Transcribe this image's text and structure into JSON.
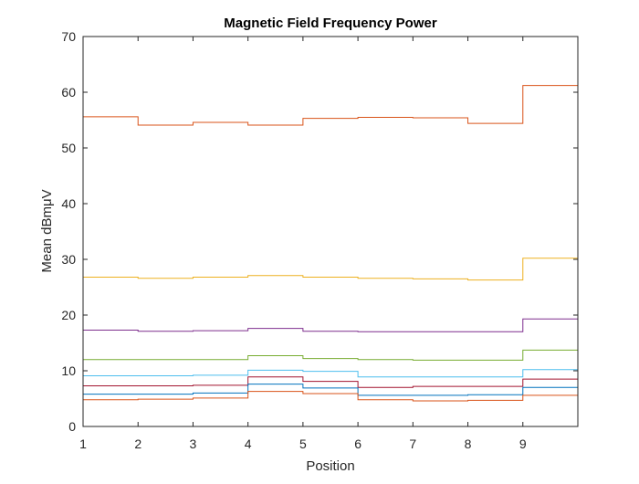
{
  "chart_data": {
    "type": "line",
    "title": "Magnetic Field Frequency Power",
    "xlabel": "Position",
    "ylabel": "Mean dBmμV",
    "xlim": [
      1,
      10
    ],
    "ylim": [
      0,
      70
    ],
    "xticks": [
      1,
      2,
      3,
      4,
      5,
      6,
      7,
      8,
      9
    ],
    "yticks": [
      0,
      10,
      20,
      30,
      40,
      50,
      60,
      70
    ],
    "grid": false,
    "legend": "none",
    "step": true,
    "x_edges": [
      1,
      2,
      3,
      4,
      5,
      6,
      7,
      8,
      9,
      10
    ],
    "series": [
      {
        "color": "#D95319",
        "values": [
          55.6,
          54.1,
          54.6,
          54.1,
          55.3,
          55.5,
          55.4,
          54.4,
          61.2
        ]
      },
      {
        "color": "#EDB120",
        "values": [
          26.8,
          26.6,
          26.8,
          27.1,
          26.8,
          26.6,
          26.5,
          26.3,
          30.2
        ]
      },
      {
        "color": "#7E2F8E",
        "values": [
          17.3,
          17.1,
          17.2,
          17.6,
          17.1,
          17.0,
          17.0,
          17.0,
          19.3
        ]
      },
      {
        "color": "#77AC30",
        "values": [
          12.0,
          12.0,
          12.0,
          12.7,
          12.2,
          12.0,
          11.9,
          11.9,
          13.7
        ]
      },
      {
        "color": "#4DBEEE",
        "values": [
          9.1,
          9.1,
          9.2,
          10.1,
          9.9,
          8.9,
          8.9,
          8.9,
          10.2
        ]
      },
      {
        "color": "#A2142F",
        "values": [
          7.3,
          7.3,
          7.4,
          8.9,
          8.1,
          7.0,
          7.2,
          7.2,
          8.5
        ]
      },
      {
        "color": "#0072BD",
        "values": [
          5.8,
          5.8,
          6.0,
          7.6,
          6.9,
          5.6,
          5.6,
          5.7,
          7.0
        ]
      },
      {
        "color": "#D95319",
        "values": [
          4.8,
          4.9,
          5.1,
          6.3,
          5.9,
          4.8,
          4.6,
          4.7,
          5.6
        ]
      }
    ]
  }
}
